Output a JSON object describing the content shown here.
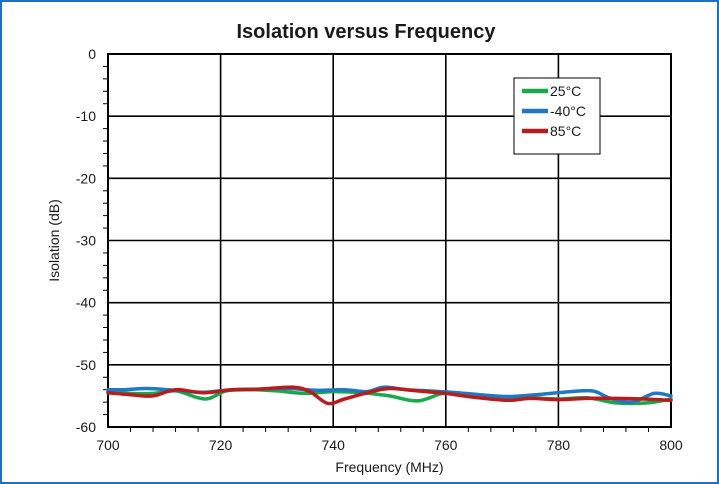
{
  "chart_data": {
    "type": "line",
    "title": "Isolation versus Frequency",
    "xlabel": "Frequency (MHz)",
    "ylabel": "Isolation (dB)",
    "xlim": [
      700,
      800
    ],
    "ylim": [
      -60,
      0
    ],
    "xticks": [
      700,
      720,
      740,
      760,
      780,
      800
    ],
    "yticks": [
      0,
      -10,
      -20,
      -30,
      -40,
      -50,
      -60
    ],
    "grid": true,
    "legend_position": "top-right",
    "series": [
      {
        "name": "25°C",
        "color": "#19a84a",
        "x": [
          700,
          704,
          708,
          712,
          716,
          718,
          721,
          725,
          730,
          735,
          740,
          745,
          750,
          755,
          760,
          765,
          770,
          775,
          780,
          785,
          790,
          794,
          797,
          800
        ],
        "y": [
          -54.3,
          -54.6,
          -54.6,
          -54.2,
          -55.3,
          -55.4,
          -54.2,
          -54.0,
          -54.2,
          -54.6,
          -54.3,
          -54.5,
          -55.0,
          -55.8,
          -54.5,
          -54.9,
          -55.1,
          -55.3,
          -55.5,
          -55.3,
          -56.1,
          -56.2,
          -56.0,
          -55.5
        ]
      },
      {
        "name": "-40°C",
        "color": "#1f78c1",
        "x": [
          700,
          703,
          707,
          712,
          717,
          722,
          727,
          732,
          737,
          742,
          746,
          749,
          753,
          757,
          761,
          766,
          771,
          776,
          781,
          786,
          789,
          793,
          797,
          800
        ],
        "y": [
          -54.0,
          -54.0,
          -53.8,
          -54.1,
          -54.4,
          -54.0,
          -53.9,
          -53.8,
          -54.1,
          -54.0,
          -54.3,
          -53.6,
          -54.0,
          -54.2,
          -54.4,
          -54.8,
          -55.1,
          -54.8,
          -54.4,
          -54.2,
          -55.3,
          -56.0,
          -54.6,
          -55.0
        ]
      },
      {
        "name": "85°C",
        "color": "#b81c1c",
        "x": [
          700,
          704,
          708,
          712,
          717,
          722,
          727,
          733,
          736,
          739,
          742,
          746,
          750,
          755,
          760,
          765,
          771,
          775,
          780,
          785,
          790,
          795,
          800
        ],
        "y": [
          -54.5,
          -54.8,
          -55.0,
          -54.0,
          -54.5,
          -54.0,
          -53.9,
          -53.6,
          -54.4,
          -56.2,
          -55.5,
          -54.5,
          -53.8,
          -54.2,
          -54.6,
          -55.2,
          -55.7,
          -55.4,
          -55.6,
          -55.4,
          -55.4,
          -55.5,
          -55.7
        ]
      }
    ]
  }
}
